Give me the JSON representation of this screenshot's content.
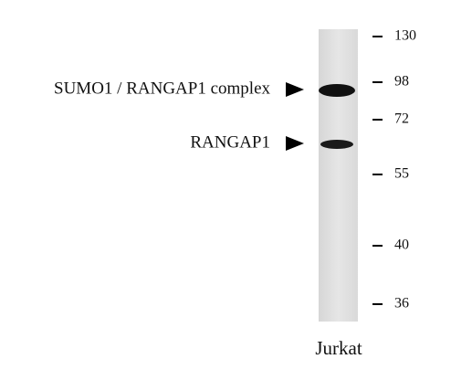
{
  "bands": [
    {
      "label": "SUMO1 / RANGAP1 complex"
    },
    {
      "label": "RANGAP1"
    }
  ],
  "markers": [
    130,
    98,
    72,
    55,
    40,
    36
  ],
  "lane": {
    "label": "Jurkat"
  }
}
